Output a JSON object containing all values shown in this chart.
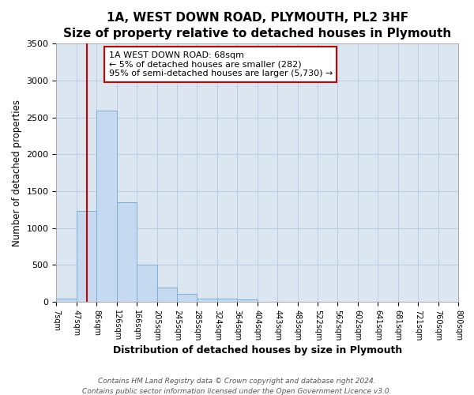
{
  "title": "1A, WEST DOWN ROAD, PLYMOUTH, PL2 3HF",
  "subtitle": "Size of property relative to detached houses in Plymouth",
  "xlabel": "Distribution of detached houses by size in Plymouth",
  "ylabel": "Number of detached properties",
  "bar_values": [
    50,
    1230,
    2590,
    1350,
    500,
    200,
    110,
    45,
    40,
    30,
    0,
    0,
    0,
    0,
    0,
    0,
    0,
    0,
    0,
    0
  ],
  "bin_labels": [
    "7sqm",
    "47sqm",
    "86sqm",
    "126sqm",
    "166sqm",
    "205sqm",
    "245sqm",
    "285sqm",
    "324sqm",
    "364sqm",
    "404sqm",
    "443sqm",
    "483sqm",
    "522sqm",
    "562sqm",
    "602sqm",
    "641sqm",
    "681sqm",
    "721sqm",
    "760sqm",
    "800sqm"
  ],
  "bar_color": "#c5d9f1",
  "bar_edge_color": "#7bafd4",
  "background_color": "#ffffff",
  "plot_bg_color": "#dce6f1",
  "grid_color": "#b8cce4",
  "vline_x": 1.5,
  "vline_color": "#cc0000",
  "ylim": [
    0,
    3500
  ],
  "yticks": [
    0,
    500,
    1000,
    1500,
    2000,
    2500,
    3000,
    3500
  ],
  "annotation_text": "1A WEST DOWN ROAD: 68sqm\n← 5% of detached houses are smaller (282)\n95% of semi-detached houses are larger (5,730) →",
  "annotation_box_color": "#ffffff",
  "annotation_box_edge": "#cc0000",
  "footer_line1": "Contains HM Land Registry data © Crown copyright and database right 2024.",
  "footer_line2": "Contains public sector information licensed under the Open Government Licence v3.0.",
  "num_bins": 20,
  "title_fontsize": 11,
  "subtitle_fontsize": 10
}
